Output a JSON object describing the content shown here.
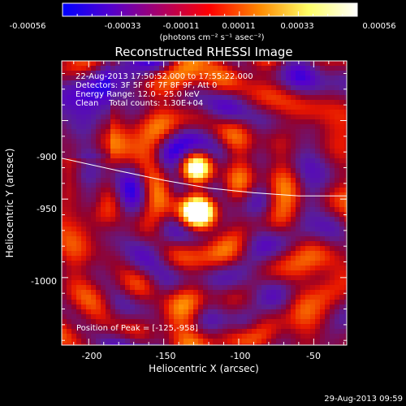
{
  "figure": {
    "title": "Reconstructed RHESSI Image",
    "date_stamp": "29-Aug-2013 09:59",
    "info": {
      "time_range": "22-Aug-2013 17:50:52.000 to 17:55:22.000",
      "detectors": "Detectors: 3F 5F 6F 7F 8F 9F, Att 0",
      "energy_range": "Energy Range: 12.0 - 25.0 keV",
      "clean_counts": "Clean    Total counts: 1.30E+04"
    },
    "peak_label": "Position of Peak = [-125,-958]"
  },
  "colorbar": {
    "ticks": [
      "-0.00056",
      "-0.00033",
      "-0.00011",
      "0.00011",
      "0.00033",
      "0.00056"
    ],
    "units": "(photons cm⁻² s⁻¹ asec⁻²)",
    "stops": [
      "#0000ff",
      "#5500cc",
      "#aa0066",
      "#ff0000",
      "#ff8800",
      "#ffff66",
      "#ffffff"
    ]
  },
  "chart_data": {
    "type": "heatmap",
    "title": "Reconstructed RHESSI Image",
    "xlabel": "Heliocentric X (arcsec)",
    "ylabel": "Heliocentric Y (arcsec)",
    "xlim": [
      -218,
      -28
    ],
    "ylim": [
      -1043,
      -862
    ],
    "x_ticks": [
      -200,
      -150,
      -100,
      -50
    ],
    "y_ticks": [
      -900,
      -950,
      -1000
    ],
    "value_range": [
      -0.00056,
      0.00056
    ],
    "peak": {
      "x": -125,
      "y": -958
    },
    "sources": [
      {
        "x": -127,
        "y": -958,
        "sigma": 9,
        "value": 0.00056
      },
      {
        "x": -128,
        "y": -930,
        "sigma": 9,
        "value": 0.00045
      }
    ],
    "limb_curve": {
      "x": [
        -218,
        -180,
        -150,
        -120,
        -90,
        -60,
        -28
      ],
      "y": [
        -924,
        -932,
        -938,
        -943,
        -946,
        -948,
        -948
      ]
    },
    "grid": false
  }
}
